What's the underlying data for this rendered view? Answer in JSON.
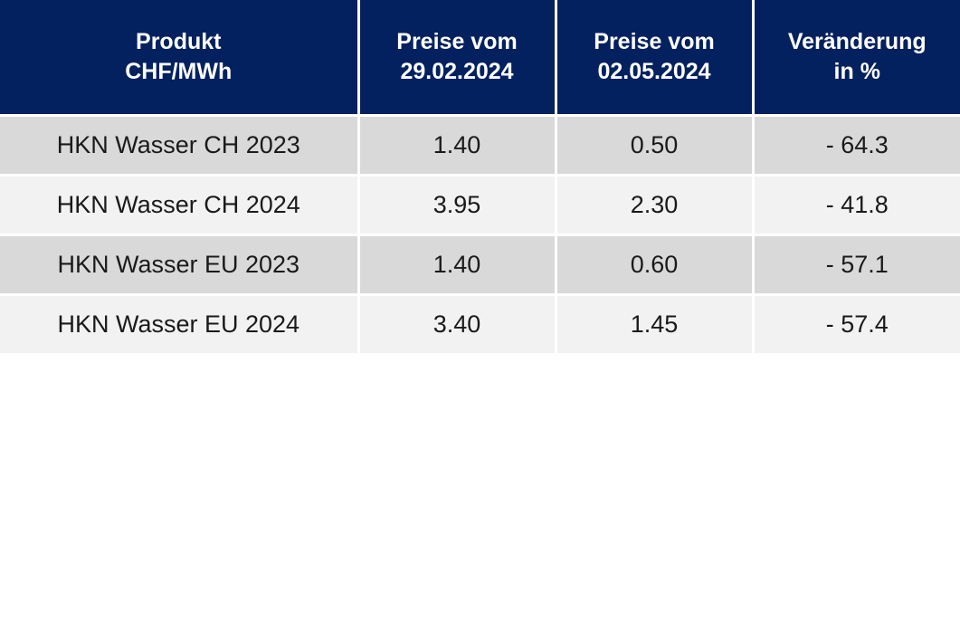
{
  "table": {
    "headers": [
      {
        "line1": "Produkt",
        "line2": "CHF/MWh"
      },
      {
        "line1": "Preise vom",
        "line2": "29.02.2024"
      },
      {
        "line1": "Preise vom",
        "line2": "02.05.2024"
      },
      {
        "line1": "Veränderung",
        "line2": "in %"
      }
    ],
    "rows": [
      {
        "product": "HKN Wasser CH 2023",
        "price_0229": "1.40",
        "price_0502": "0.50",
        "change": "- 64.3"
      },
      {
        "product": "HKN Wasser CH 2024",
        "price_0229": "3.95",
        "price_0502": "2.30",
        "change": "- 41.8"
      },
      {
        "product": "HKN Wasser EU 2023",
        "price_0229": "1.40",
        "price_0502": "0.60",
        "change": "- 57.1"
      },
      {
        "product": "HKN Wasser EU 2024",
        "price_0229": "3.40",
        "price_0502": "1.45",
        "change": "- 57.4"
      }
    ],
    "colors": {
      "header_bg": "#03215e",
      "header_text": "#ffffff",
      "row_dark": "#d9d9d9",
      "row_light": "#f2f2f2"
    }
  }
}
